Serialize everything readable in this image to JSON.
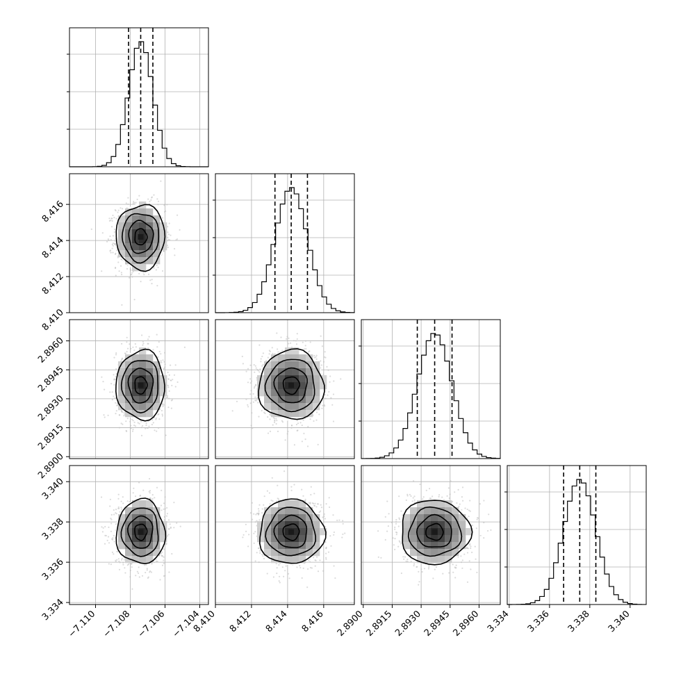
{
  "chart_data": {
    "type": "corner",
    "grid": true,
    "colors": {
      "line": "#000000",
      "grid": "#b0b0b0",
      "points": "#bdbdbd",
      "density_dark": "#1a1a1a"
    },
    "quantiles": [
      0.16,
      0.5,
      0.84
    ],
    "params": [
      {
        "range": [
          -7.1115,
          -7.1035
        ],
        "median": -7.1074,
        "q_low": -7.1081,
        "q_high": -7.1067,
        "sigma": 0.0007,
        "ticks": [
          {
            "v": -7.11,
            "label": "−7.110"
          },
          {
            "v": -7.108,
            "label": "−7.108"
          },
          {
            "v": -7.106,
            "label": "−7.106"
          },
          {
            "v": -7.104,
            "label": "−7.104"
          }
        ]
      },
      {
        "range": [
          8.41,
          8.4177
        ],
        "median": 8.4142,
        "q_low": 8.4133,
        "q_high": 8.4151,
        "sigma": 0.0009,
        "ticks": [
          {
            "v": 8.41,
            "label": "8.410"
          },
          {
            "v": 8.412,
            "label": "8.412"
          },
          {
            "v": 8.414,
            "label": "8.414"
          },
          {
            "v": 8.416,
            "label": "8.416"
          }
        ]
      },
      {
        "range": [
          2.8899,
          2.8971
        ],
        "median": 2.8937,
        "q_low": 2.8928,
        "q_high": 2.8946,
        "sigma": 0.0009,
        "ticks": [
          {
            "v": 2.89,
            "label": "2.8900"
          },
          {
            "v": 2.8915,
            "label": "2.8915"
          },
          {
            "v": 2.893,
            "label": "2.8930"
          },
          {
            "v": 2.8945,
            "label": "2.8945"
          },
          {
            "v": 2.896,
            "label": "2.8960"
          }
        ]
      },
      {
        "range": [
          3.3339,
          3.3408
        ],
        "median": 3.3375,
        "q_low": 3.3367,
        "q_high": 3.3383,
        "sigma": 0.0008,
        "ticks": [
          {
            "v": 3.334,
            "label": "3.334"
          },
          {
            "v": 3.336,
            "label": "3.336"
          },
          {
            "v": 3.338,
            "label": "3.338"
          },
          {
            "v": 3.34,
            "label": "3.340"
          }
        ]
      }
    ]
  }
}
